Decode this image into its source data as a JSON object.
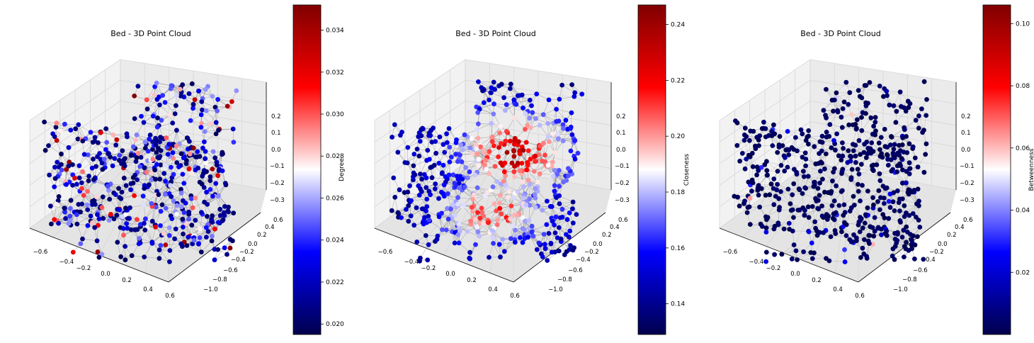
{
  "chart_data": [
    {
      "type": "scatter3d",
      "title": "Bed - 3D Point Cloud",
      "colormap": "seismic",
      "x_ticks": [
        "−0.6",
        "−0.4",
        "−0.2",
        "0.0",
        "0.2",
        "0.4",
        "0.6"
      ],
      "y_ticks": [
        "0.6",
        "0.4",
        "0.2",
        "0.0",
        "−0.2",
        "−0.4",
        "−0.6",
        "−0.8",
        "−1.0"
      ],
      "z_ticks": [
        "0.2",
        "0.1",
        "0.0",
        "−0.1",
        "−0.2",
        "−0.3"
      ],
      "colorbar": {
        "label": "Degree",
        "range": [
          0.0195,
          0.0352
        ],
        "ticks": [
          "0.034",
          "0.032",
          "0.030",
          "0.028",
          "0.026",
          "0.024",
          "0.022",
          "0.020"
        ],
        "tick_values": [
          0.034,
          0.032,
          0.03,
          0.028,
          0.026,
          0.024,
          0.022,
          0.02
        ]
      }
    },
    {
      "type": "scatter3d",
      "title": "Bed - 3D Point Cloud",
      "colormap": "seismic",
      "x_ticks": [
        "−0.6",
        "−0.4",
        "−0.2",
        "0.0",
        "0.2",
        "0.4",
        "0.6"
      ],
      "y_ticks": [
        "0.6",
        "0.4",
        "0.2",
        "0.0",
        "−0.2",
        "−0.4",
        "−0.6",
        "−0.8",
        "−1.0"
      ],
      "z_ticks": [
        "0.2",
        "0.1",
        "0.0",
        "−0.1",
        "−0.2",
        "−0.3"
      ],
      "colorbar": {
        "label": "Closeness",
        "range": [
          0.129,
          0.247
        ],
        "ticks": [
          "0.24",
          "0.22",
          "0.20",
          "0.18",
          "0.16",
          "0.14"
        ],
        "tick_values": [
          0.24,
          0.22,
          0.2,
          0.18,
          0.16,
          0.14
        ]
      }
    },
    {
      "type": "scatter3d",
      "title": "Bed - 3D Point Cloud",
      "colormap": "seismic",
      "x_ticks": [
        "−0.6",
        "−0.4",
        "−0.2",
        "0.0",
        "0.2",
        "0.4",
        "0.6"
      ],
      "y_ticks": [
        "0.6",
        "0.4",
        "0.2",
        "0.0",
        "−0.2",
        "−0.4",
        "−0.6",
        "−0.8",
        "−1.0"
      ],
      "z_ticks": [
        "0.2",
        "0.1",
        "0.0",
        "−0.1",
        "−0.2",
        "−0.3"
      ],
      "colorbar": {
        "label": "Betweenness",
        "range": [
          0.0,
          0.106
        ],
        "ticks": [
          "0.10",
          "0.08",
          "0.06",
          "0.04",
          "0.02"
        ],
        "tick_values": [
          0.1,
          0.08,
          0.06,
          0.04,
          0.02
        ]
      }
    }
  ],
  "colors": {
    "edges": "#808080",
    "pane": "#f2f2f2",
    "grid": "#d6d6d6"
  }
}
